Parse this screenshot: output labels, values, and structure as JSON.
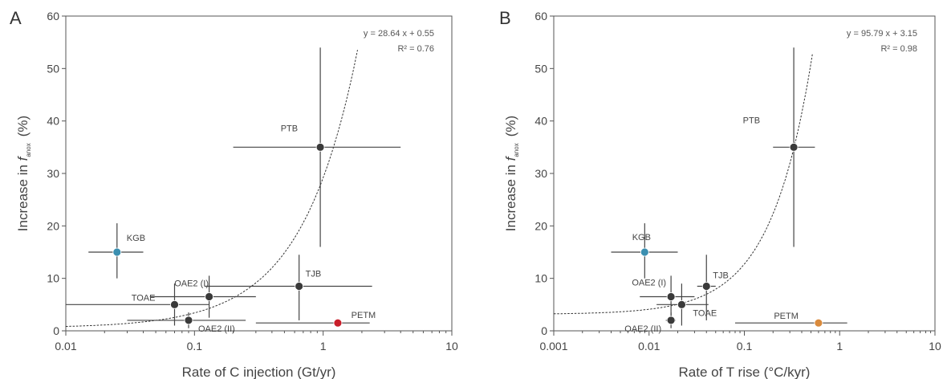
{
  "chart_data": [
    {
      "type": "scatter",
      "panel": "A",
      "xlabel": "Rate of C injection (Gt/yr)",
      "ylabel": "Increase in f (%)",
      "ylabel_prefix": "Increase in ",
      "ylabel_symbol": "f",
      "ylabel_subscript": "anox",
      "ylabel_unit": "(%)",
      "xscale": "log",
      "xlim": [
        0.01,
        10
      ],
      "ylim": [
        0,
        60
      ],
      "xticks": [
        "0.01",
        "0.1",
        "1",
        "10"
      ],
      "yticks": [
        "0",
        "10",
        "20",
        "30",
        "40",
        "50",
        "60"
      ],
      "fit_equation": "y = 28.64 x + 0.55",
      "fit_r2": "R² = 0.76",
      "fit": {
        "slope": 28.64,
        "intercept": 0.55,
        "x_range": [
          0.01,
          1.85
        ]
      },
      "points": [
        {
          "label": "PTB",
          "x": 0.95,
          "y": 35,
          "xerr": [
            0.2,
            4.0
          ],
          "yerr": [
            16,
            54
          ],
          "color": "#3a3a3a"
        },
        {
          "label": "KGB",
          "x": 0.025,
          "y": 15,
          "xerr": [
            0.015,
            0.04
          ],
          "yerr": [
            10,
            20.5
          ],
          "color": "#3b8fb0"
        },
        {
          "label": "TJB",
          "x": 0.65,
          "y": 8.5,
          "xerr": [
            0.12,
            2.4
          ],
          "yerr": [
            2,
            14.5
          ],
          "color": "#3a3a3a"
        },
        {
          "label": "OAE2 (I)",
          "x": 0.13,
          "y": 6.5,
          "xerr": [
            0.045,
            0.3
          ],
          "yerr": [
            2.5,
            10.5
          ],
          "color": "#3a3a3a"
        },
        {
          "label": "TOAE",
          "x": 0.07,
          "y": 5,
          "xerr": [
            0.01,
            0.13
          ],
          "yerr": [
            1,
            9
          ],
          "color": "#3a3a3a"
        },
        {
          "label": "OAE2 (II)",
          "x": 0.09,
          "y": 2,
          "xerr": [
            0.03,
            0.25
          ],
          "yerr": [
            0.5,
            3.5
          ],
          "color": "#3a3a3a"
        },
        {
          "label": "PETM",
          "x": 1.3,
          "y": 1.5,
          "xerr": [
            0.3,
            2.3
          ],
          "yerr": [
            1.5,
            1.5
          ],
          "color": "#c81e2a"
        }
      ]
    },
    {
      "type": "scatter",
      "panel": "B",
      "xlabel": "Rate of T rise (°C/kyr)",
      "ylabel": "Increase in f (%)",
      "ylabel_prefix": "Increase in ",
      "ylabel_symbol": "f",
      "ylabel_subscript": "anox",
      "ylabel_unit": "(%)",
      "xscale": "log",
      "xlim": [
        0.001,
        10
      ],
      "ylim": [
        0,
        60
      ],
      "xticks": [
        "0.001",
        "0.01",
        "0.1",
        "1",
        "10"
      ],
      "yticks": [
        "0",
        "10",
        "20",
        "30",
        "40",
        "50",
        "60"
      ],
      "fit_equation": "y = 95.79 x + 3.15",
      "fit_r2": "R² = 0.98",
      "fit": {
        "slope": 95.79,
        "intercept": 3.15,
        "x_range": [
          0.001,
          0.52
        ]
      },
      "points": [
        {
          "label": "PTB",
          "x": 0.33,
          "y": 35,
          "xerr": [
            0.2,
            0.55
          ],
          "yerr": [
            16,
            54
          ],
          "color": "#3a3a3a"
        },
        {
          "label": "KGB",
          "x": 0.009,
          "y": 15,
          "xerr": [
            0.004,
            0.02
          ],
          "yerr": [
            10,
            20.5
          ],
          "color": "#3b8fb0"
        },
        {
          "label": "TJB",
          "x": 0.04,
          "y": 8.5,
          "xerr": [
            0.032,
            0.05
          ],
          "yerr": [
            2,
            14.5
          ],
          "color": "#3a3a3a"
        },
        {
          "label": "OAE2 (I)",
          "x": 0.017,
          "y": 6.5,
          "xerr": [
            0.008,
            0.03
          ],
          "yerr": [
            2.5,
            10.5
          ],
          "color": "#3a3a3a"
        },
        {
          "label": "TOAE",
          "x": 0.022,
          "y": 5,
          "xerr": [
            0.012,
            0.042
          ],
          "yerr": [
            1,
            9
          ],
          "color": "#3a3a3a"
        },
        {
          "label": "OAE2 (II)",
          "x": 0.017,
          "y": 2,
          "xerr": [
            0.015,
            0.019
          ],
          "yerr": [
            0.5,
            3.5
          ],
          "color": "#3a3a3a"
        },
        {
          "label": "PETM",
          "x": 0.6,
          "y": 1.5,
          "xerr": [
            0.08,
            1.2
          ],
          "yerr": [
            1.5,
            1.5
          ],
          "color": "#d98a3c"
        }
      ]
    }
  ]
}
